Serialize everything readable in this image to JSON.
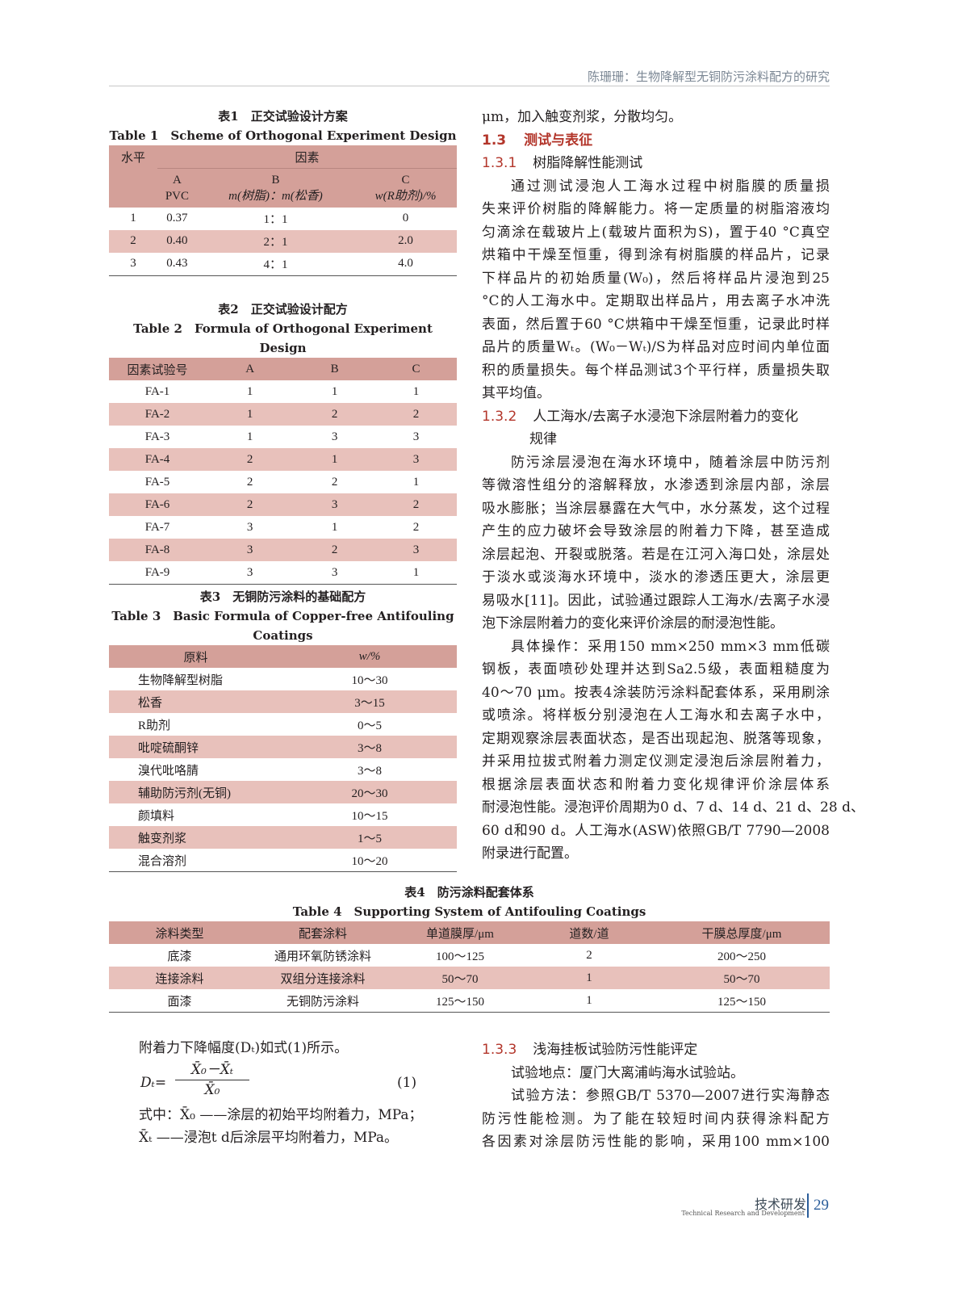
{
  "running_header": "陈珊珊：生物降解型无铜防污涂料配方的研究",
  "table1": {
    "caption_cn": "表1　正交试验设计方案",
    "caption_en": "Table 1　Scheme of Orthogonal Experiment Design",
    "h_level": "水平",
    "h_factor": "因素",
    "h_a": "A",
    "h_a2": "PVC",
    "h_b": "B",
    "h_b2": "m(树脂)：m(松香)",
    "h_c": "C",
    "h_c2": "w(R助剂)/%",
    "rows": [
      [
        "1",
        "0.37",
        "1：1",
        "0"
      ],
      [
        "2",
        "0.40",
        "2：1",
        "2.0"
      ],
      [
        "3",
        "0.43",
        "4：1",
        "4.0"
      ]
    ]
  },
  "table2": {
    "caption_cn": "表2　正交试验设计配方",
    "caption_en": "Table 2　Formula of Orthogonal Experiment Design",
    "headers": [
      "因素试验号",
      "A",
      "B",
      "C"
    ],
    "rows": [
      [
        "FA-1",
        "1",
        "1",
        "1"
      ],
      [
        "FA-2",
        "1",
        "2",
        "2"
      ],
      [
        "FA-3",
        "1",
        "3",
        "3"
      ],
      [
        "FA-4",
        "2",
        "1",
        "3"
      ],
      [
        "FA-5",
        "2",
        "2",
        "1"
      ],
      [
        "FA-6",
        "2",
        "3",
        "2"
      ],
      [
        "FA-7",
        "3",
        "1",
        "2"
      ],
      [
        "FA-8",
        "3",
        "2",
        "3"
      ],
      [
        "FA-9",
        "3",
        "3",
        "1"
      ]
    ]
  },
  "table3": {
    "caption_cn": "表3　无铜防污涂料的基础配方",
    "caption_en1": "Table 3　Basic Formula of Copper-free Antifouling",
    "caption_en2": "Coatings",
    "headers": [
      "原料",
      "w/%"
    ],
    "rows": [
      [
        "生物降解型树脂",
        "10～30"
      ],
      [
        "松香",
        "3～15"
      ],
      [
        "R助剂",
        "0～5"
      ],
      [
        "吡啶硫酮锌",
        "3～8"
      ],
      [
        "溴代吡咯腈",
        "3～8"
      ],
      [
        "辅助防污剂(无铜)",
        "20～30"
      ],
      [
        "颜填料",
        "10～15"
      ],
      [
        "触变剂浆",
        "1～5"
      ],
      [
        "混合溶剂",
        "10～20"
      ]
    ]
  },
  "table4": {
    "caption_cn": "表4　防污涂料配套体系",
    "caption_en": "Table 4　Supporting System of Antifouling Coatings",
    "headers": [
      "涂料类型",
      "配套涂料",
      "单道膜厚/μm",
      "道数/道",
      "干膜总厚度/μm"
    ],
    "rows": [
      [
        "底漆",
        "通用环氧防锈涂料",
        "100～125",
        "2",
        "200～250"
      ],
      [
        "连接涂料",
        "双组分连接涂料",
        "50～70",
        "1",
        "50～70"
      ],
      [
        "面漆",
        "无铜防污涂料",
        "125～150",
        "1",
        "125～150"
      ]
    ]
  },
  "right_col": {
    "l0": "μm，加入触变剂浆，分散均匀。",
    "sec13_num": "1.3",
    "sec13_title": "测试与表征",
    "sec131_num": "1.3.1",
    "sec131_title": "树脂降解性能测试",
    "p1": [
      "通过测试浸泡人工海水过程中树脂膜的质量损",
      "失来评价树脂的降解能力。将一定质量的树脂溶液均",
      "匀滴涂在载玻片上(载玻片面积为S)，置于40 °C真空",
      "烘箱中干燥至恒重，得到涂有树脂膜的样品片，记录",
      "下样品片的初始质量(W₀)，然后将样品片浸泡到25",
      "°C的人工海水中。定期取出样品片，用去离子水冲洗",
      "表面，然后置于60 °C烘箱中干燥至恒重，记录此时样",
      "品片的质量Wₜ。(W₀－Wₜ)/S为样品对应时间内单位面",
      "积的质量损失。每个样品测试3个平行样，质量损失取",
      "其平均值。"
    ],
    "sec132_num": "1.3.2",
    "sec132_title1": "人工海水/去离子水浸泡下涂层附着力的变化",
    "sec132_title2": "规律",
    "p2": [
      "防污涂层浸泡在海水环境中，随着涂层中防污剂",
      "等微溶性组分的溶解释放，水渗透到涂层内部，涂层",
      "吸水膨胀；当涂层暴露在大气中，水分蒸发，这个过程",
      "产生的应力破坏会导致涂层的附着力下降，甚至造成",
      "涂层起泡、开裂或脱落。若是在江河入海口处，涂层处",
      "于淡水或淡海水环境中，淡水的渗透压更大，涂层更",
      "易吸水[11]。因此，试验通过跟踪人工海水/去离子水浸",
      "泡下涂层附着力的变化来评价涂层的耐浸泡性能。"
    ],
    "p3": [
      "具体操作：采用150 mm×250 mm×3 mm低碳",
      "钢板，表面喷砂处理并达到Sa2.5级，表面粗糙度为",
      "40～70 μm。按表4涂装防污涂料配套体系，采用刷涂",
      "或喷涂。将样板分别浸泡在人工海水和去离子水中，",
      "定期观察涂层表面状态，是否出现起泡、脱落等现象，",
      "并采用拉拔式附着力测定仪测定浸泡后涂层附着力，",
      "根据涂层表面状态和附着力变化规律评价涂层体系",
      "耐浸泡性能。浸泡评价周期为0 d、7 d、14 d、21 d、28 d、",
      "60 d和90 d。人工海水(ASW)依照GB/T 7790—2008",
      "附录进行配置。"
    ]
  },
  "bottom_left": {
    "intro": "附着力下降幅度(Dₜ)如式(1)所示。",
    "eq_lhs": "Dₜ=",
    "eq_num": "X̄₀－X̄ₜ",
    "eq_den": "X̄₀",
    "eq_label": "(1)",
    "where1": "式中：X̄₀ ——涂层的初始平均附着力，MPa；",
    "where2": "X̄ₜ ——浸泡t d后涂层平均附着力，MPa。"
  },
  "bottom_right": {
    "sec133_num": "1.3.3",
    "sec133_title": "浅海挂板试验防污性能评定",
    "lines": [
      "试验地点：厦门大离浦屿海水试验站。",
      "试验方法：参照GB/T 5370—2007进行实海静态",
      "防污性能检测。为了能在较短时间内获得涂料配方",
      "各因素对涂层防污性能的影响，采用100 mm×100"
    ]
  },
  "footer": {
    "section_cn": "技术研发",
    "section_en": "Technical Research and Development",
    "page": "29"
  },
  "colors": {
    "table_header": "#d4a099",
    "table_alt_row": "#e8c1bb",
    "heading_red": "#b3362b",
    "page_num_blue": "#2a5d9a"
  }
}
